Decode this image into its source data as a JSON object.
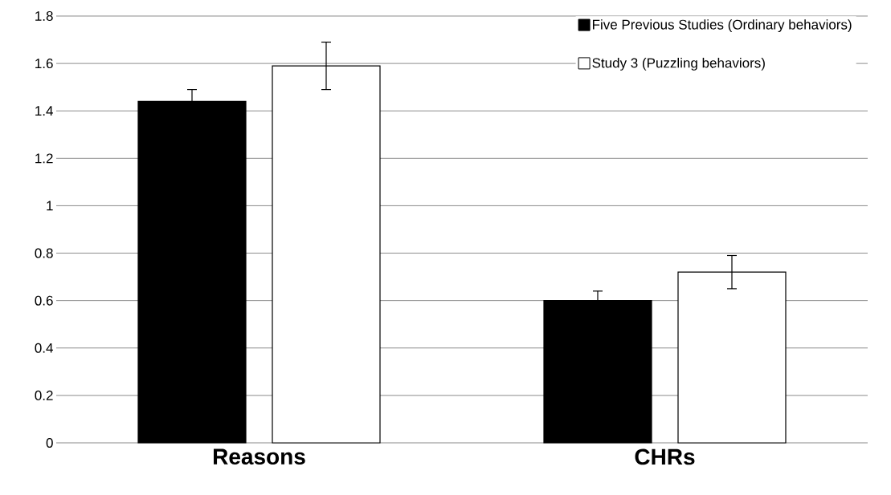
{
  "chart_data": {
    "type": "bar",
    "categories": [
      "Reasons",
      "CHRs"
    ],
    "series": [
      {
        "name": "Five Previous Studies (Ordinary behaviors)",
        "color": "#000000",
        "values": [
          1.44,
          0.6
        ],
        "errors": [
          0.05,
          0.04
        ]
      },
      {
        "name": "Study 3 (Puzzling behaviors)",
        "color": "#ffffff",
        "values": [
          1.59,
          0.72
        ],
        "errors": [
          0.1,
          0.07
        ]
      }
    ],
    "ylim": [
      0,
      1.8
    ],
    "yticks": [
      0,
      0.2,
      0.4,
      0.6,
      0.8,
      1,
      1.2,
      1.4,
      1.6,
      1.8
    ],
    "grid": "y",
    "legend": "top right"
  }
}
